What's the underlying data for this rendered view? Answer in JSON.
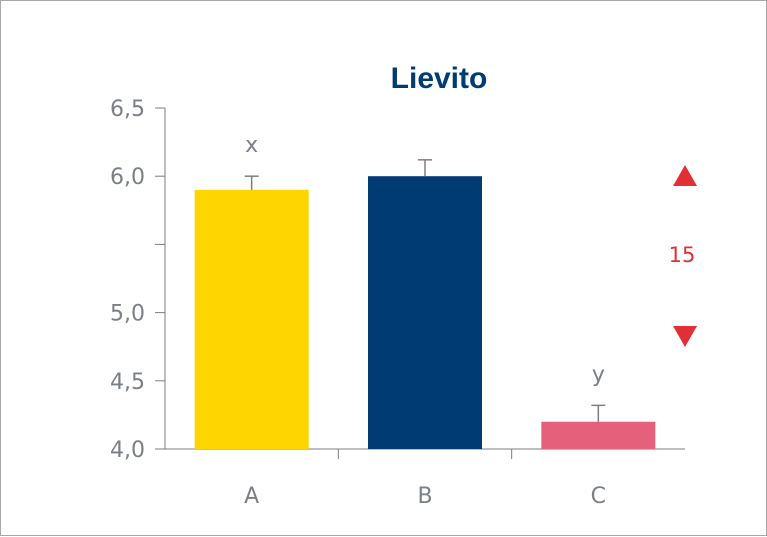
{
  "chart_data": {
    "type": "bar",
    "title": "Lievito",
    "categories": [
      "A",
      "B",
      "C"
    ],
    "values": [
      5.9,
      6.0,
      4.2
    ],
    "errors": [
      0.1,
      0.12,
      0.12
    ],
    "bar_colors": [
      "#ffd500",
      "#003b73",
      "#e5607a"
    ],
    "bar_labels": [
      "x",
      "",
      "y"
    ],
    "yticks": [
      4.0,
      4.5,
      5.0,
      5.5,
      6.0,
      6.5
    ],
    "ytick_labels": [
      "4,0",
      "4,5",
      "5,0",
      "",
      "6,0",
      "6,5"
    ],
    "ylim": [
      4.0,
      6.5
    ],
    "xlabel": "",
    "ylabel": "",
    "grid": false
  },
  "side_indicator": {
    "value": "15",
    "color": "#e03036",
    "up_icon": "triangle-up-icon",
    "down_icon": "triangle-down-icon"
  }
}
